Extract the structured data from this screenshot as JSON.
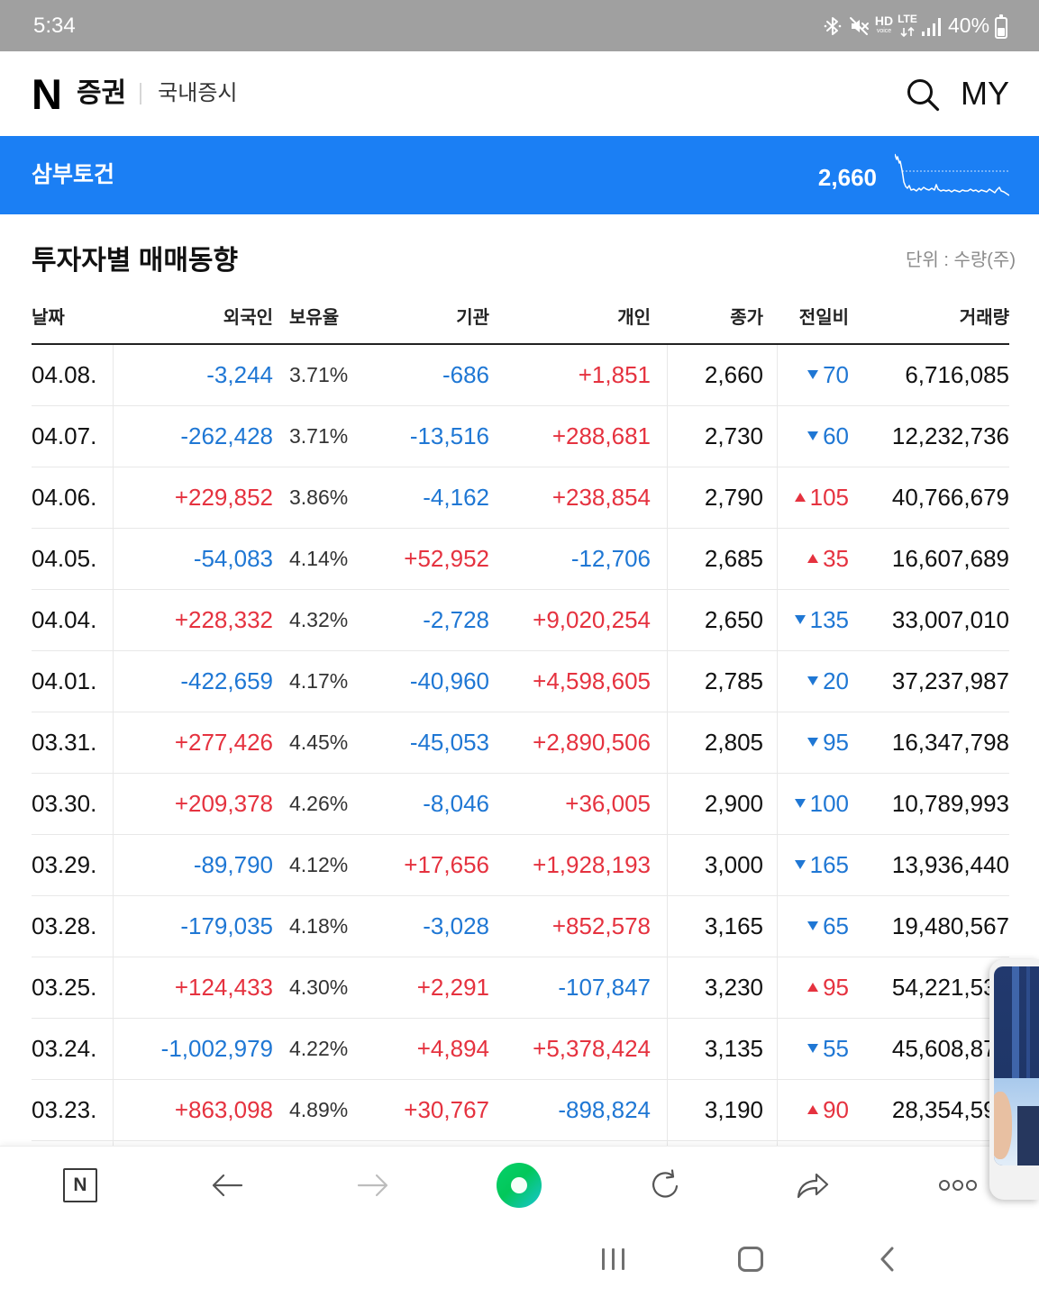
{
  "status_bar": {
    "time": "5:34",
    "hd": "HD",
    "hd_sub": "voice",
    "lte": "LTE",
    "battery": "40%",
    "icons": [
      "bluetooth-icon",
      "mute-icon",
      "hd-voice-icon",
      "lte-icon",
      "signal-icon",
      "battery-icon"
    ]
  },
  "header": {
    "logo": "N",
    "service": "증권",
    "section": "국내증시",
    "my_label": "MY",
    "search_icon": "search-icon"
  },
  "stock_bar": {
    "name": "삼부토건",
    "price": "2,660"
  },
  "investor_trend": {
    "title": "투자자별 매매동향",
    "unit": "단위 : 수량(주)",
    "columns": {
      "date": "날짜",
      "foreign": "외국인",
      "holding": "보유율",
      "institution": "기관",
      "individual": "개인",
      "close": "종가",
      "change": "전일비",
      "volume": "거래량"
    },
    "rows": [
      {
        "date": "04.08.",
        "foreign": "-3,244",
        "holding": "3.71%",
        "institution": "-686",
        "individual": "+1,851",
        "close": "2,660",
        "change": "70",
        "change_dir": "down",
        "volume": "6,716,085"
      },
      {
        "date": "04.07.",
        "foreign": "-262,428",
        "holding": "3.71%",
        "institution": "-13,516",
        "individual": "+288,681",
        "close": "2,730",
        "change": "60",
        "change_dir": "down",
        "volume": "12,232,736"
      },
      {
        "date": "04.06.",
        "foreign": "+229,852",
        "holding": "3.86%",
        "institution": "-4,162",
        "individual": "+238,854",
        "close": "2,790",
        "change": "105",
        "change_dir": "up",
        "volume": "40,766,679"
      },
      {
        "date": "04.05.",
        "foreign": "-54,083",
        "holding": "4.14%",
        "institution": "+52,952",
        "individual": "-12,706",
        "close": "2,685",
        "change": "35",
        "change_dir": "up",
        "volume": "16,607,689"
      },
      {
        "date": "04.04.",
        "foreign": "+228,332",
        "holding": "4.32%",
        "institution": "-2,728",
        "individual": "+9,020,254",
        "close": "2,650",
        "change": "135",
        "change_dir": "down",
        "volume": "33,007,010"
      },
      {
        "date": "04.01.",
        "foreign": "-422,659",
        "holding": "4.17%",
        "institution": "-40,960",
        "individual": "+4,598,605",
        "close": "2,785",
        "change": "20",
        "change_dir": "down",
        "volume": "37,237,987"
      },
      {
        "date": "03.31.",
        "foreign": "+277,426",
        "holding": "4.45%",
        "institution": "-45,053",
        "individual": "+2,890,506",
        "close": "2,805",
        "change": "95",
        "change_dir": "down",
        "volume": "16,347,798"
      },
      {
        "date": "03.30.",
        "foreign": "+209,378",
        "holding": "4.26%",
        "institution": "-8,046",
        "individual": "+36,005",
        "close": "2,900",
        "change": "100",
        "change_dir": "down",
        "volume": "10,789,993"
      },
      {
        "date": "03.29.",
        "foreign": "-89,790",
        "holding": "4.12%",
        "institution": "+17,656",
        "individual": "+1,928,193",
        "close": "3,000",
        "change": "165",
        "change_dir": "down",
        "volume": "13,936,440"
      },
      {
        "date": "03.28.",
        "foreign": "-179,035",
        "holding": "4.18%",
        "institution": "-3,028",
        "individual": "+852,578",
        "close": "3,165",
        "change": "65",
        "change_dir": "down",
        "volume": "19,480,567"
      },
      {
        "date": "03.25.",
        "foreign": "+124,433",
        "holding": "4.30%",
        "institution": "+2,291",
        "individual": "-107,847",
        "close": "3,230",
        "change": "95",
        "change_dir": "up",
        "volume": "54,221,53"
      },
      {
        "date": "03.24.",
        "foreign": "-1,002,979",
        "holding": "4.22%",
        "institution": "+4,894",
        "individual": "+5,378,424",
        "close": "3,135",
        "change": "55",
        "change_dir": "down",
        "volume": "45,608,87"
      },
      {
        "date": "03.23.",
        "foreign": "+863,098",
        "holding": "4.89%",
        "institution": "+30,767",
        "individual": "-898,824",
        "close": "3,190",
        "change": "90",
        "change_dir": "up",
        "volume": "28,354,59"
      }
    ]
  },
  "colors": {
    "rise": "#e5323f",
    "fall": "#1f77d4",
    "brand_blue": "#1b7ff4",
    "status_bar": "#a0a0a0",
    "naver_green": "#03c75a"
  },
  "toolbar": {
    "home_logo": "N",
    "icons": [
      "naver-home-icon",
      "back-arrow-icon",
      "forward-arrow-icon",
      "green-dot-icon",
      "refresh-icon",
      "share-icon",
      "more-icon"
    ]
  },
  "nav_bar": {
    "icons": [
      "recent-apps-icon",
      "home-icon",
      "back-icon"
    ]
  }
}
